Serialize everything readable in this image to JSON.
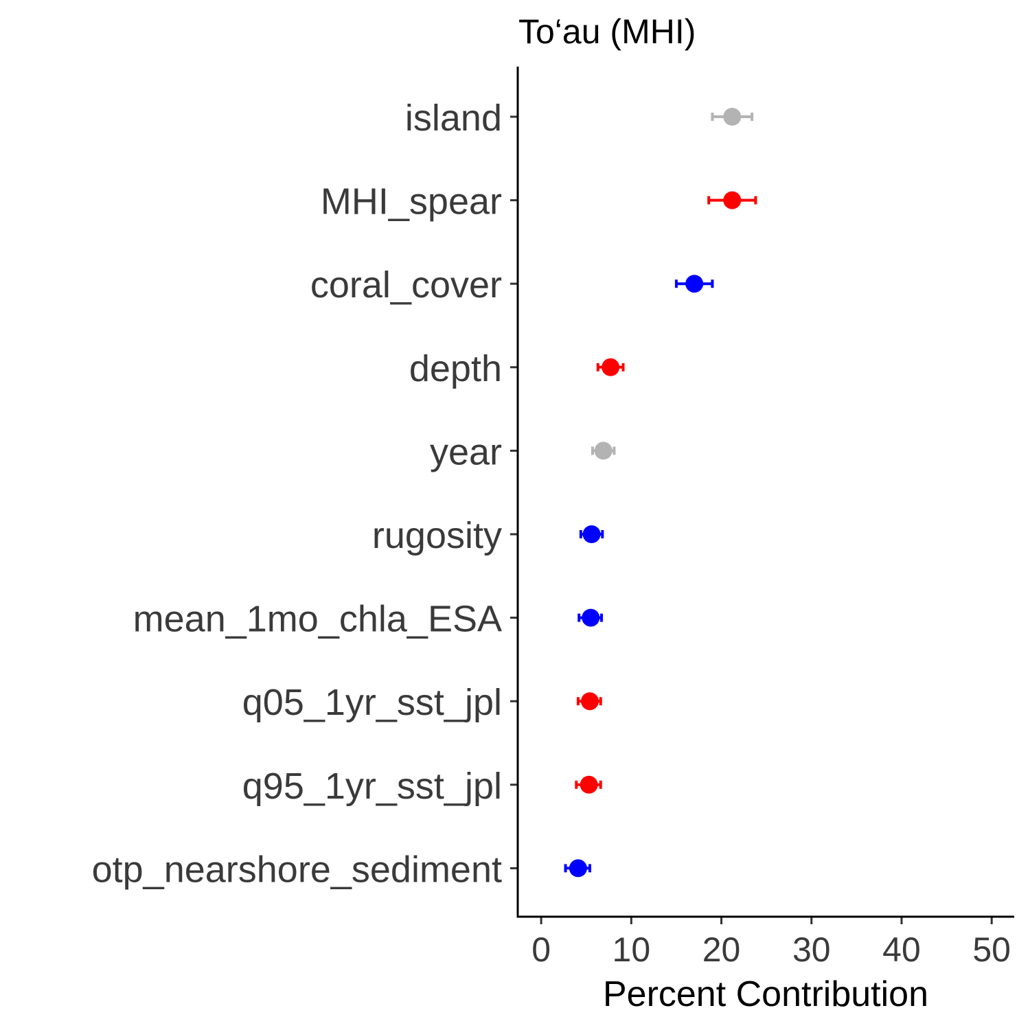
{
  "chart_data": {
    "type": "scatter",
    "title": "To‘au (MHI)",
    "xlabel": "Percent Contribution",
    "ylabel": "",
    "xlim": [
      -2.6,
      52.5
    ],
    "x_ticks": [
      0,
      10,
      20,
      30,
      40,
      50
    ],
    "grid": false,
    "legend": "none",
    "points": [
      {
        "label": "island",
        "value": 21.2,
        "lower": 19.0,
        "upper": 23.4,
        "color": "#b3b3b3"
      },
      {
        "label": "MHI_spear",
        "value": 21.2,
        "lower": 18.6,
        "upper": 23.8,
        "color": "#ff0000"
      },
      {
        "label": "coral_cover",
        "value": 17.0,
        "lower": 15.0,
        "upper": 19.0,
        "color": "#0000ff"
      },
      {
        "label": "depth",
        "value": 7.7,
        "lower": 6.3,
        "upper": 9.1,
        "color": "#ff0000"
      },
      {
        "label": "year",
        "value": 6.9,
        "lower": 5.7,
        "upper": 8.1,
        "color": "#b3b3b3"
      },
      {
        "label": "rugosity",
        "value": 5.6,
        "lower": 4.4,
        "upper": 6.8,
        "color": "#0000ff"
      },
      {
        "label": "mean_1mo_chla_ESA",
        "value": 5.5,
        "lower": 4.2,
        "upper": 6.7,
        "color": "#0000ff"
      },
      {
        "label": "q05_1yr_sst_jpl",
        "value": 5.4,
        "lower": 4.1,
        "upper": 6.6,
        "color": "#ff0000"
      },
      {
        "label": "q95_1yr_sst_jpl",
        "value": 5.3,
        "lower": 3.9,
        "upper": 6.6,
        "color": "#ff0000"
      },
      {
        "label": "otp_nearshore_sediment",
        "value": 4.1,
        "lower": 2.7,
        "upper": 5.4,
        "color": "#0000ff"
      }
    ]
  }
}
